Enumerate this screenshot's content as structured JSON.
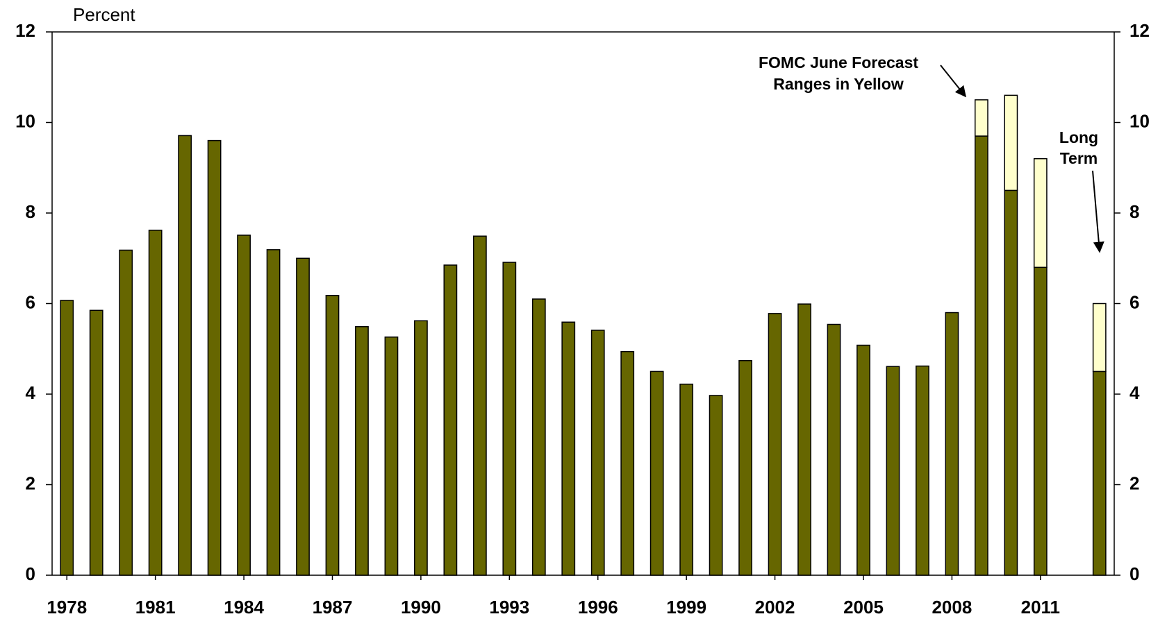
{
  "chart_data": {
    "type": "bar",
    "ylabel": "Percent",
    "categories": [
      "1978",
      null,
      null,
      "1981",
      null,
      null,
      "1984",
      null,
      null,
      "1987",
      null,
      null,
      "1990",
      null,
      null,
      "1993",
      null,
      null,
      "1996",
      null,
      null,
      "1999",
      null,
      null,
      "2002",
      null,
      null,
      "2005",
      null,
      null,
      "2008",
      null,
      null,
      "2011",
      null,
      null
    ],
    "series": [
      {
        "color": "#666600",
        "values": [
          6.07,
          5.85,
          7.18,
          7.62,
          9.71,
          9.6,
          7.51,
          7.19,
          7.0,
          6.18,
          5.49,
          5.26,
          5.62,
          6.85,
          7.49,
          6.91,
          6.1,
          5.59,
          5.41,
          4.94,
          4.5,
          4.22,
          3.97,
          4.74,
          5.78,
          5.99,
          5.54,
          5.08,
          4.61,
          4.62,
          5.8,
          9.7,
          8.5,
          6.8,
          null,
          4.5
        ]
      },
      {
        "color": "#ffffcc",
        "values": [
          null,
          null,
          null,
          null,
          null,
          null,
          null,
          null,
          null,
          null,
          null,
          null,
          null,
          null,
          null,
          null,
          null,
          null,
          null,
          null,
          null,
          null,
          null,
          null,
          null,
          null,
          null,
          null,
          null,
          null,
          null,
          0.8,
          2.1,
          2.4,
          null,
          1.5
        ]
      }
    ],
    "ylim": [
      0,
      12
    ],
    "yticks": [
      0,
      2,
      4,
      6,
      8,
      10,
      12
    ],
    "y2lim": [
      0,
      12
    ],
    "y2ticks": [
      0,
      2,
      4,
      6,
      8,
      10,
      12
    ],
    "annotations": [
      {
        "lines": [
          "FOMC June Forecast",
          "Ranges in Yellow"
        ]
      },
      {
        "lines": [
          "Long",
          "Term"
        ]
      }
    ]
  }
}
